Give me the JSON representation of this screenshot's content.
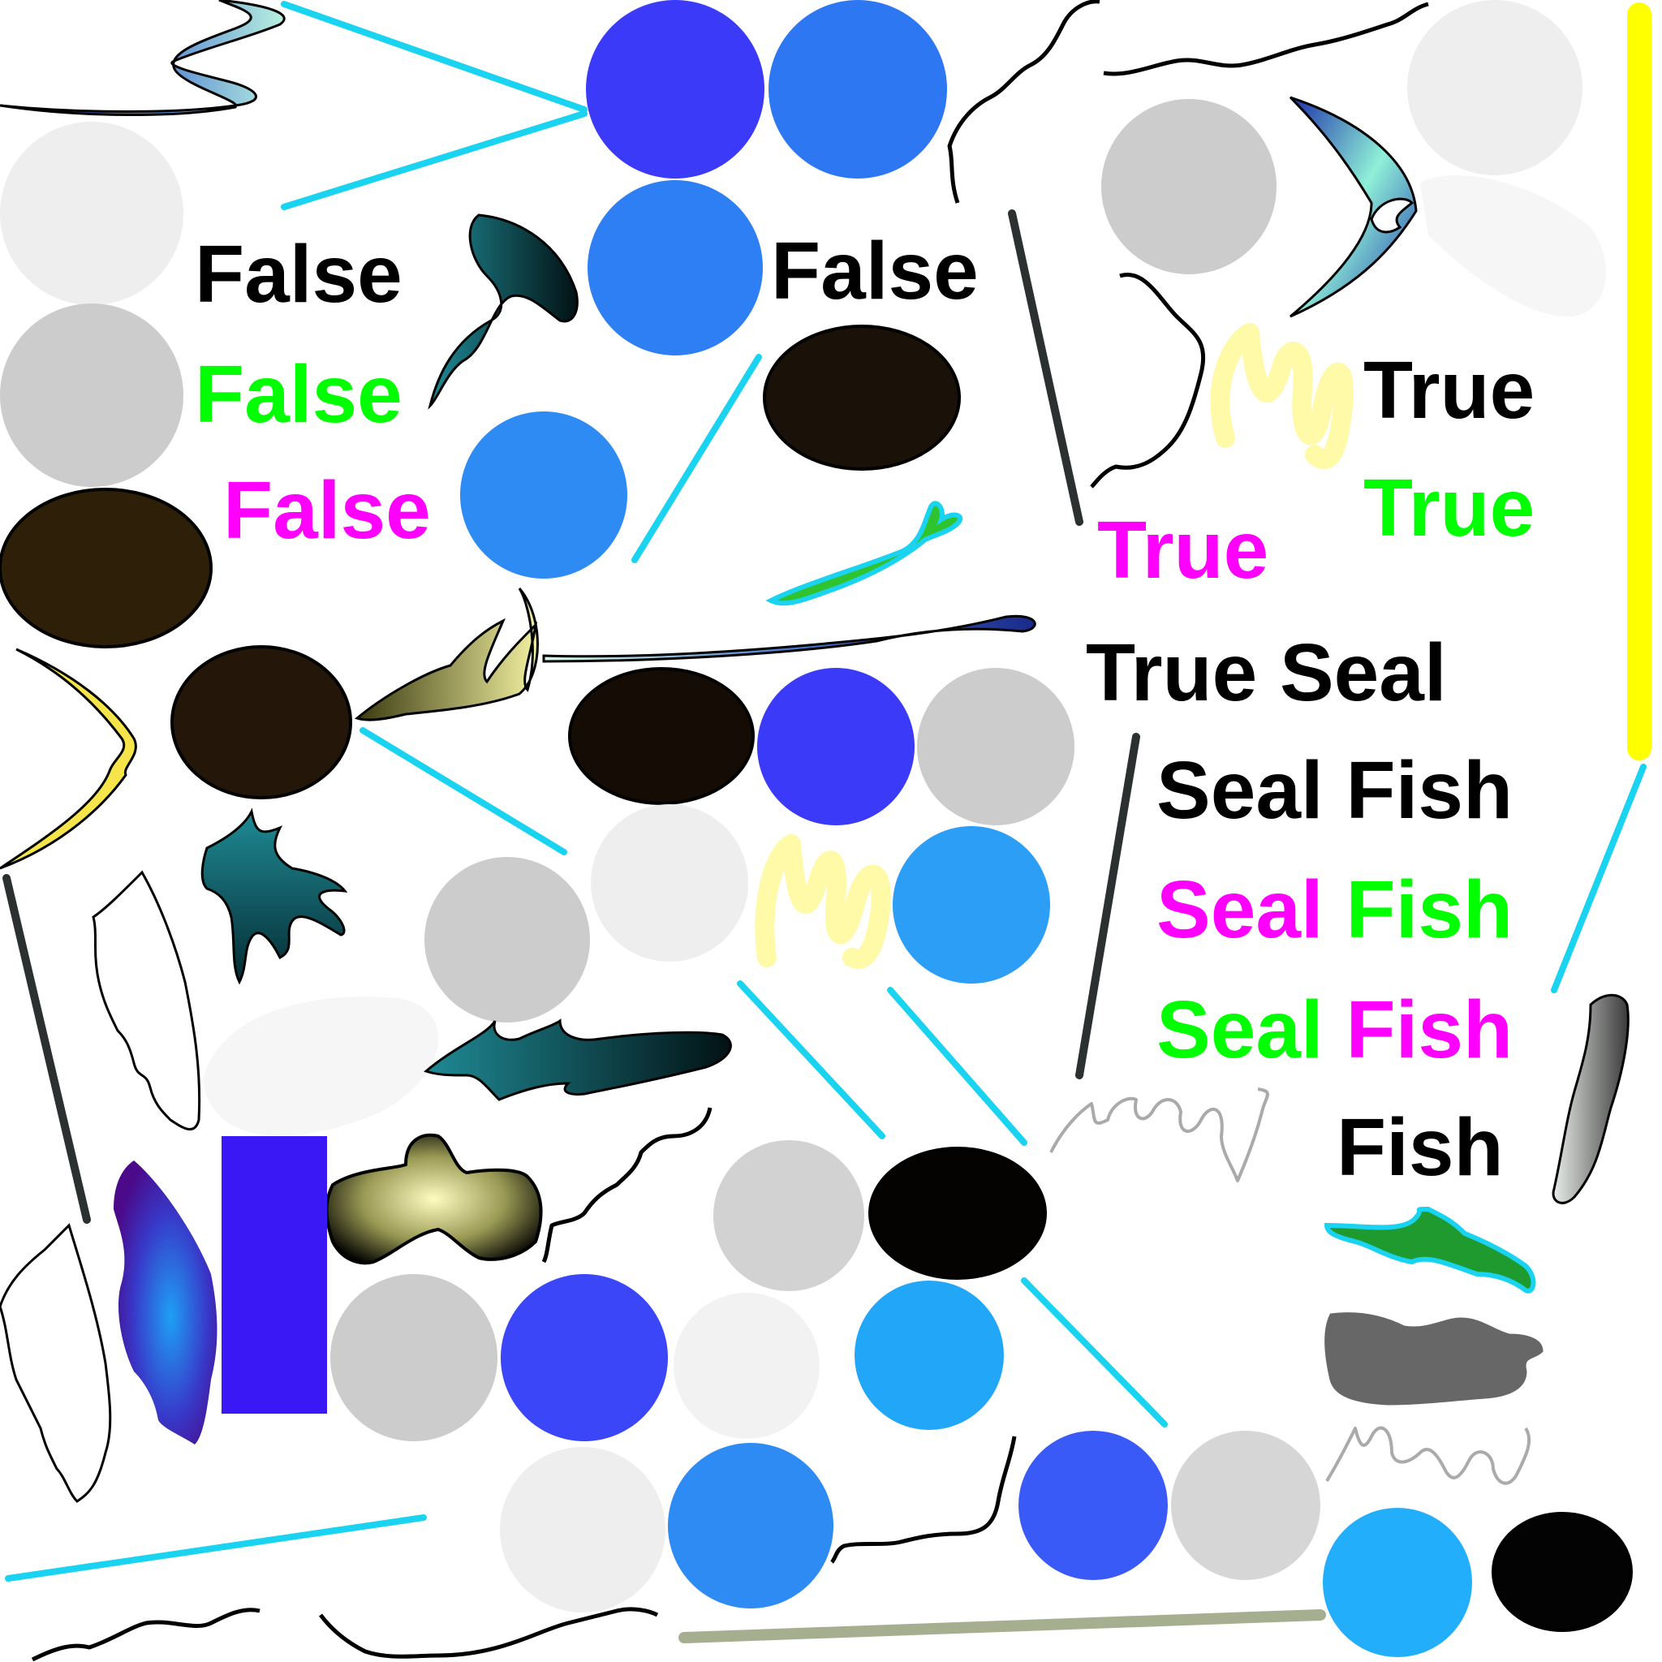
{
  "labels": {
    "false_black_1": "False",
    "false_green": "False",
    "false_magenta": "False",
    "false_black_2": "False",
    "true_black": "True",
    "true_green": "True",
    "true_magenta": "True",
    "true_seal": "True Seal",
    "seal_fish_black": "Seal Fish",
    "seal_mg_seal": "Seal",
    "seal_mg_fish": "Fish",
    "seal_gm_seal": "Seal",
    "seal_gm_fish": "Fish",
    "fish": "Fish"
  },
  "colors": {
    "text_black": "#000000",
    "text_green": "#00ff00",
    "text_magenta": "#ff00ff",
    "line_cyan": "#1ad3f0",
    "line_dark": "#2b3031",
    "line_yellow": "#ffff00",
    "line_olive": "#a6ae90",
    "blob_black": "#000000",
    "blob_brown": "#1f1405",
    "circle_light": "#eeeeee",
    "circle_gray": "#cccccc",
    "circle_blue_dark": "#3a3af8",
    "circle_blue_mid": "#2e7ff3",
    "circle_blue_light": "#22a6f8",
    "rect_blue": "#3a18f6",
    "pastel_yellow": "#fffaa8",
    "dark_gray_blob": "#676767",
    "gray_scribble": "#aaaaaa"
  },
  "icons": [
    "fish-icon",
    "seal-icon",
    "squid-icon",
    "leaf-icon",
    "reef-icon",
    "crab-icon",
    "eel-icon",
    "starfish-icon",
    "urchin-icon",
    "sponge-icon"
  ]
}
